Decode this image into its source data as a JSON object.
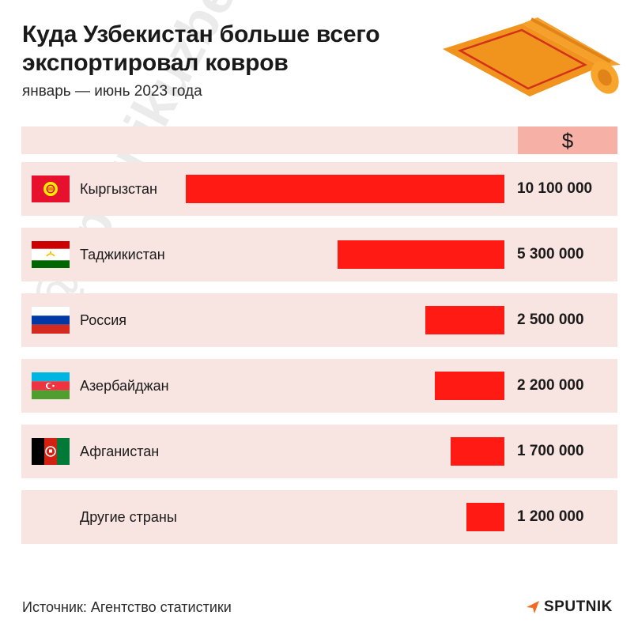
{
  "header": {
    "title_line1": "Куда Узбекистан больше всего",
    "title_line2": "экспортировал ковров",
    "subtitle": "январь — июнь 2023 года"
  },
  "currency_label": "$",
  "watermark": "@sputnikuzbekistan",
  "footer": {
    "source": "Источник: Агентство статистики",
    "brand": "SPUTNIK"
  },
  "colors": {
    "bar": "#ff1a14",
    "row_bg": "#f8e4e0",
    "currency_bg": "#f7b0a6"
  },
  "chart_data": {
    "type": "bar",
    "orientation": "horizontal",
    "categories": [
      "Кыргызстан",
      "Таджикистан",
      "Россия",
      "Азербайджан",
      "Афганистан",
      "Другие страны"
    ],
    "values": [
      10100000,
      5300000,
      2500000,
      2200000,
      1700000,
      1200000
    ],
    "value_labels": [
      "10 100 000",
      "5 300 000",
      "2 500 000",
      "2 200 000",
      "1 700 000",
      "1 200 000"
    ],
    "flags": [
      "kyrgyzstan-flag-icon",
      "tajikistan-flag-icon",
      "russia-flag-icon",
      "azerbaijan-flag-icon",
      "afghanistan-flag-icon",
      ""
    ],
    "unit": "$"
  }
}
